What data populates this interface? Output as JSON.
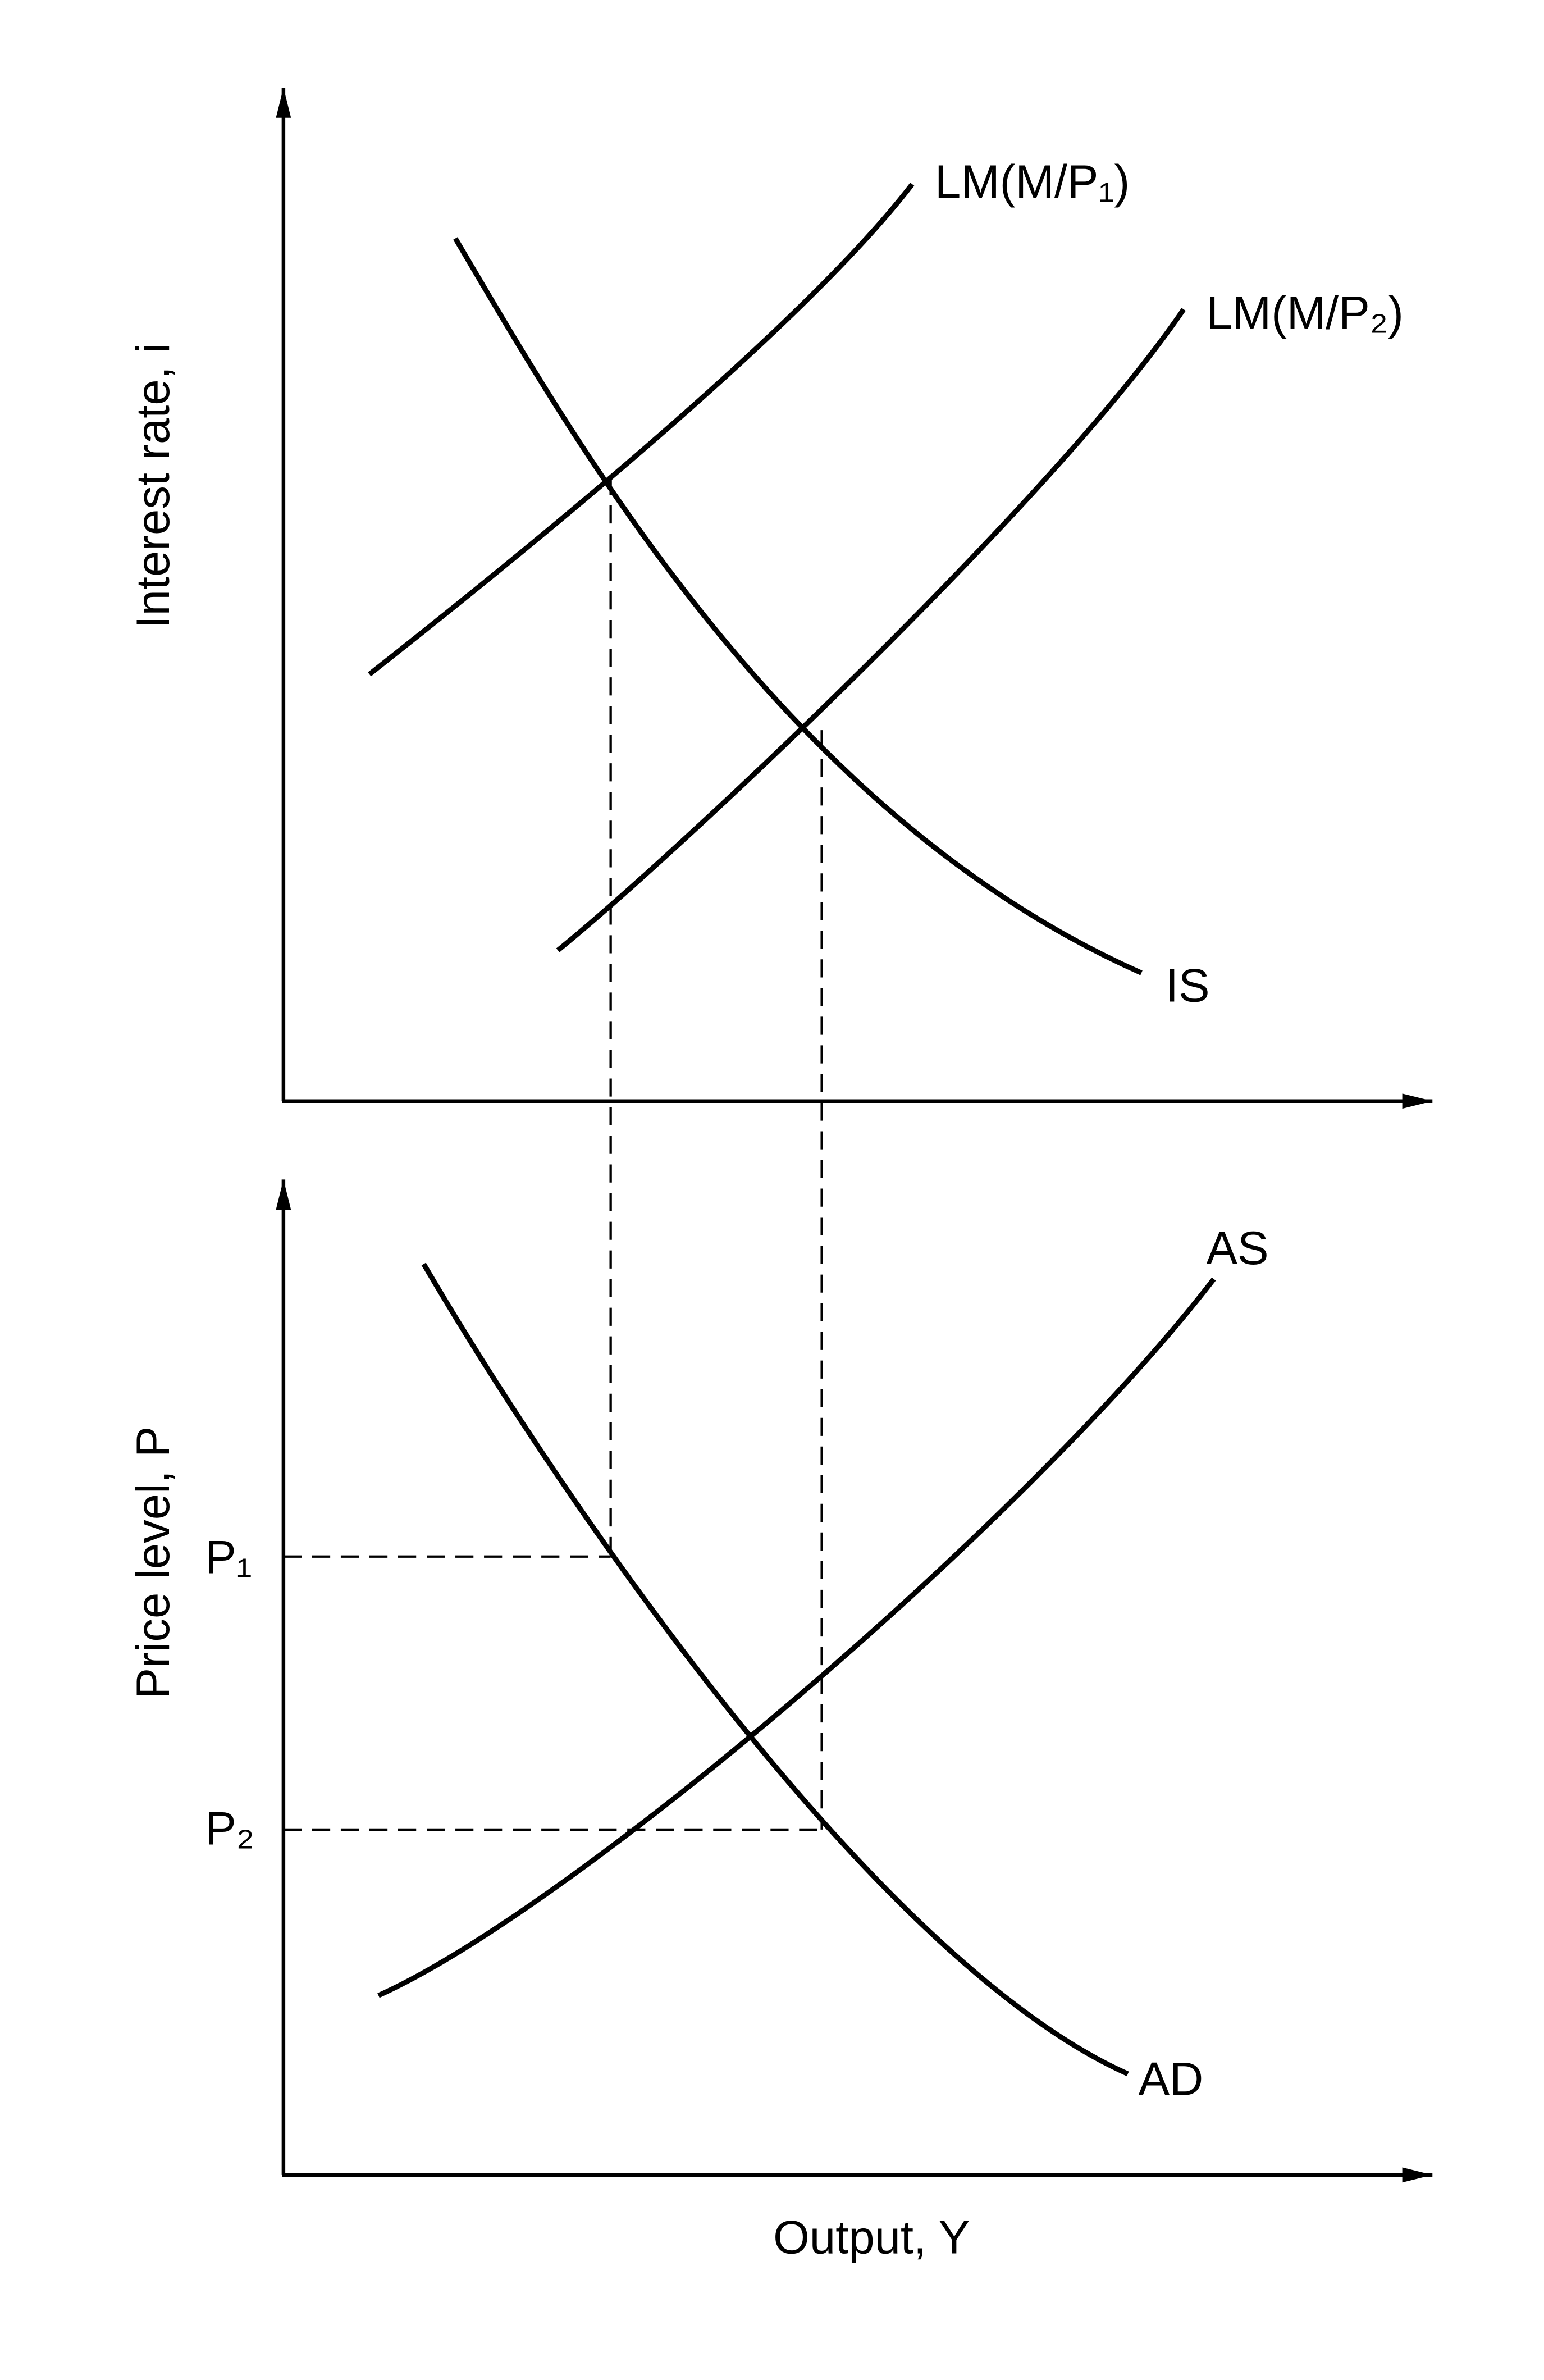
{
  "top_panel": {
    "y_axis_label": "Interest rate, i",
    "curves": [
      "LM(M/P₁)",
      "LM(M/P₂)",
      "IS"
    ]
  },
  "bottom_panel": {
    "y_axis_label": "Price level, P",
    "x_axis_label": "Output, Y",
    "y_tick_labels": [
      "P₁",
      "P₂"
    ],
    "curves": [
      "AS",
      "AD"
    ]
  }
}
